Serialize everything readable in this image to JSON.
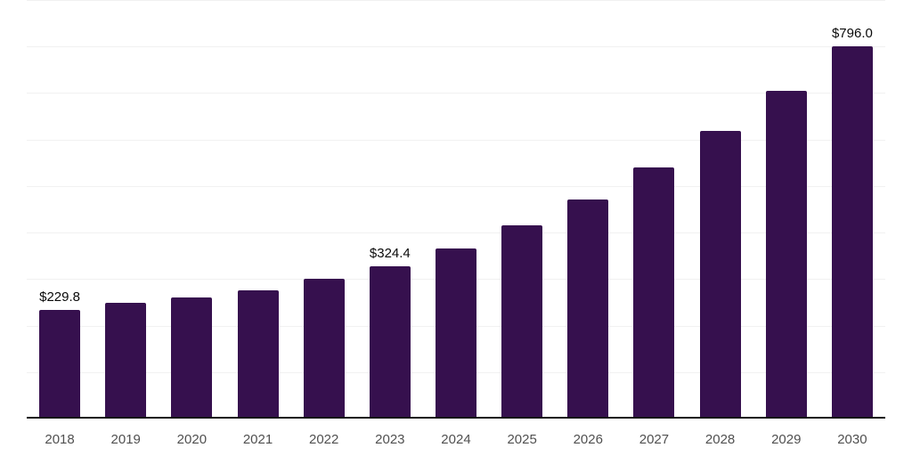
{
  "chart_data": {
    "type": "bar",
    "title": "",
    "xlabel": "",
    "ylabel": "",
    "categories": [
      "2018",
      "2019",
      "2020",
      "2021",
      "2022",
      "2023",
      "2024",
      "2025",
      "2026",
      "2027",
      "2028",
      "2029",
      "2030"
    ],
    "values": [
      229.8,
      246,
      257,
      271,
      296,
      324.4,
      361,
      411,
      468,
      537,
      614,
      700,
      796.0
    ],
    "value_labels": [
      "$229.8",
      "",
      "",
      "",
      "",
      "$324.4",
      "",
      "",
      "",
      "",
      "",
      "",
      "$796.0"
    ],
    "ylim": [
      0,
      900
    ],
    "gridline_step": 100,
    "grid": "horizontal-only",
    "legend_position": "none",
    "y_tick_labels_visible": false,
    "colors": {
      "bar": "#36104e",
      "axis_line": "#161616",
      "gridline": "#f1f1f1",
      "value_label": "#0a0a0a",
      "tick_label": "#505050",
      "background": "#ffffff"
    }
  }
}
